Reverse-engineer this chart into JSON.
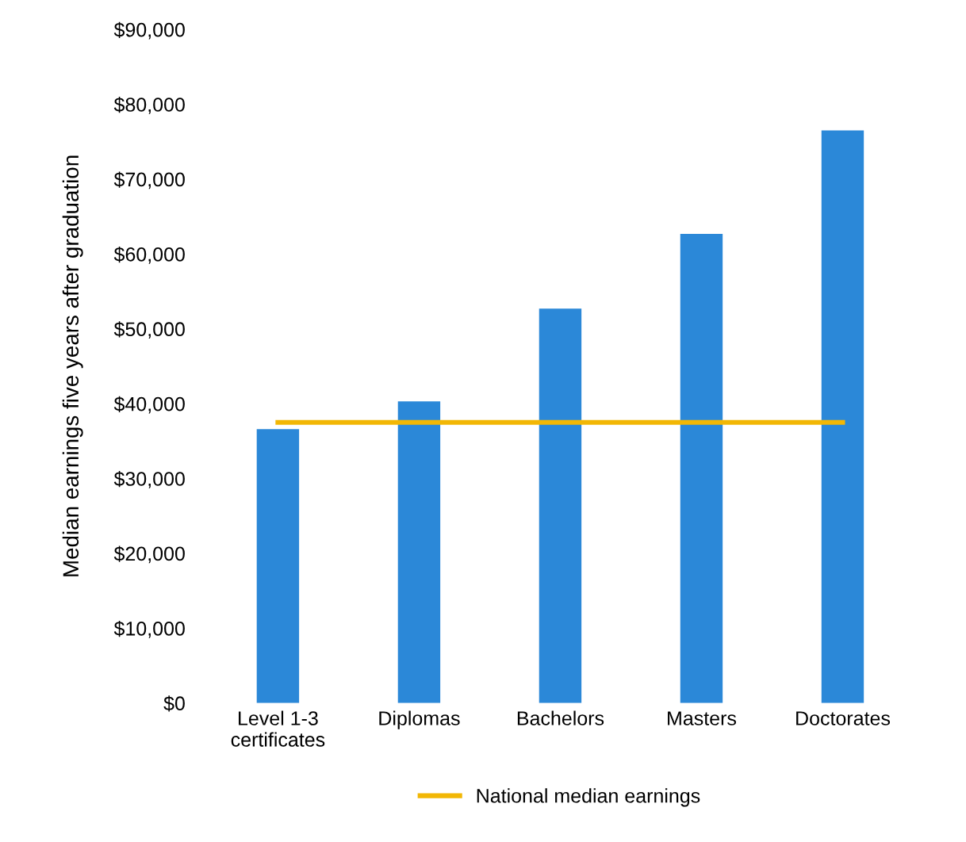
{
  "chart_data": {
    "type": "bar",
    "ylabel": "Median earnings five years after graduation",
    "categories": [
      "Level 1-3\ncertificates",
      "Diplomas",
      "Bachelors",
      "Masters",
      "Doctorates"
    ],
    "series": [
      {
        "color": "#2b88d8",
        "values": [
          36600,
          40300,
          52700,
          62700,
          76500
        ]
      },
      {
        "type": "line",
        "name": "National median earnings",
        "color": "#f2b705",
        "values": [
          37500,
          37500,
          37500,
          37500,
          37500
        ]
      }
    ],
    "ylim": [
      0,
      90000
    ],
    "yticks": [
      {
        "value": 0,
        "label": "$0"
      },
      {
        "value": 10000,
        "label": "$10,000"
      },
      {
        "value": 20000,
        "label": "$20,000"
      },
      {
        "value": 30000,
        "label": "$30,000"
      },
      {
        "value": 40000,
        "label": "$40,000"
      },
      {
        "value": 50000,
        "label": "$50,000"
      },
      {
        "value": 60000,
        "label": "$60,000"
      },
      {
        "value": 70000,
        "label": "$70,000"
      },
      {
        "value": 80000,
        "label": "$80,000"
      },
      {
        "value": 90000,
        "label": "$90,000"
      }
    ],
    "grid": false,
    "legend": "bottom",
    "marker": "none",
    "line_style": "solid"
  }
}
